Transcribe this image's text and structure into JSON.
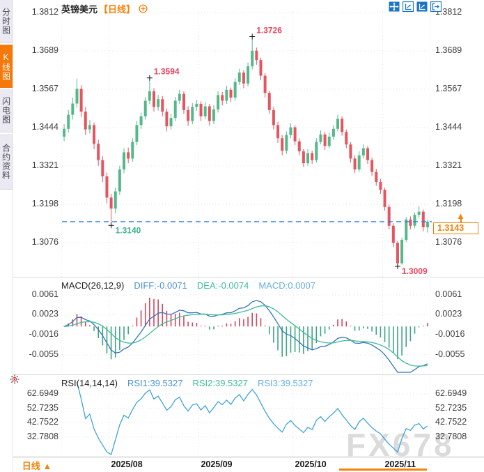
{
  "watermark": {
    "text": "FX678"
  },
  "sidebar": {
    "items": [
      {
        "label": "分时图",
        "active": false
      },
      {
        "label": "K线图",
        "active": true
      },
      {
        "label": "闪电图",
        "active": false
      },
      {
        "label": "合约资料",
        "active": false
      }
    ]
  },
  "header": {
    "symbol": "英镑美元",
    "period_tag": "【日线】"
  },
  "toolbar": {
    "icons": [
      {
        "name": "pan-tool"
      },
      {
        "name": "axis-zoom"
      },
      {
        "name": "axis-scale"
      },
      {
        "name": "exit-restore"
      }
    ]
  },
  "current_price": {
    "display": "1.3143",
    "value": 1.3143
  },
  "footer": {
    "period_label": "日线",
    "arrow": "▲"
  },
  "colors": {
    "accent_orange": "#f5820a",
    "candle_up": "#54b98a",
    "candle_down": "#e45560",
    "price_line_blue": "#1f83e8",
    "diff_blue": "#3273be",
    "dea_teal": "#3cbb95",
    "macd_hist_pos": "#d4455b",
    "macd_hist_neg": "#3da57f",
    "rsi_blue": "#3fa3d8",
    "grid": "#e3e3e3",
    "marker": "#111111"
  },
  "chart_data": {
    "type": "candlestick",
    "symbol": "英镑美元 (GBP/USD)",
    "interval": "日线",
    "price_ticks": [
      "1.3812",
      "1.3689",
      "1.3567",
      "1.3444",
      "1.3321",
      "1.3198",
      "1.3076"
    ],
    "candles": [
      [
        1.3415,
        1.3455,
        1.34,
        1.344
      ],
      [
        1.344,
        1.35,
        1.3428,
        1.3485
      ],
      [
        1.3485,
        1.354,
        1.347,
        1.3521
      ],
      [
        1.3521,
        1.36,
        1.3508,
        1.3568
      ],
      [
        1.3568,
        1.358,
        1.3478,
        1.3495
      ],
      [
        1.3495,
        1.351,
        1.342,
        1.3438
      ],
      [
        1.3438,
        1.3468,
        1.3425,
        1.3452
      ],
      [
        1.3452,
        1.346,
        1.3375,
        1.3392
      ],
      [
        1.3392,
        1.3405,
        1.3322,
        1.334
      ],
      [
        1.334,
        1.3352,
        1.327,
        1.3288
      ],
      [
        1.3288,
        1.33,
        1.3202,
        1.322
      ],
      [
        1.322,
        1.3232,
        1.314,
        1.3185
      ],
      [
        1.3185,
        1.3252,
        1.317,
        1.324
      ],
      [
        1.324,
        1.3322,
        1.3228,
        1.331
      ],
      [
        1.331,
        1.3378,
        1.3298,
        1.3365
      ],
      [
        1.3365,
        1.338,
        1.333,
        1.3345
      ],
      [
        1.3345,
        1.341,
        1.3335,
        1.3398
      ],
      [
        1.3398,
        1.3465,
        1.3388,
        1.3452
      ],
      [
        1.3452,
        1.3492,
        1.344,
        1.348
      ],
      [
        1.348,
        1.3542,
        1.347,
        1.353
      ],
      [
        1.353,
        1.3594,
        1.3518,
        1.356
      ],
      [
        1.356,
        1.357,
        1.3495,
        1.351
      ],
      [
        1.351,
        1.3548,
        1.3498,
        1.3535
      ],
      [
        1.3535,
        1.3545,
        1.348,
        1.3495
      ],
      [
        1.3495,
        1.3505,
        1.3432,
        1.3448
      ],
      [
        1.3448,
        1.3488,
        1.3438,
        1.3475
      ],
      [
        1.3475,
        1.3542,
        1.3465,
        1.353
      ],
      [
        1.353,
        1.3565,
        1.352,
        1.3552
      ],
      [
        1.3552,
        1.356,
        1.3488,
        1.35
      ],
      [
        1.35,
        1.3512,
        1.345,
        1.3465
      ],
      [
        1.3465,
        1.3522,
        1.3455,
        1.351
      ],
      [
        1.351,
        1.3532,
        1.3498,
        1.352
      ],
      [
        1.352,
        1.3528,
        1.3465,
        1.348
      ],
      [
        1.348,
        1.3525,
        1.347,
        1.3512
      ],
      [
        1.3512,
        1.352,
        1.345,
        1.3465
      ],
      [
        1.3465,
        1.3515,
        1.3455,
        1.3502
      ],
      [
        1.3502,
        1.356,
        1.3492,
        1.3548
      ],
      [
        1.3548,
        1.3558,
        1.3515,
        1.353
      ],
      [
        1.353,
        1.3578,
        1.352,
        1.3565
      ],
      [
        1.3565,
        1.3572,
        1.3525,
        1.354
      ],
      [
        1.354,
        1.3602,
        1.353,
        1.359
      ],
      [
        1.359,
        1.3632,
        1.358,
        1.362
      ],
      [
        1.362,
        1.3628,
        1.357,
        1.3585
      ],
      [
        1.3585,
        1.3652,
        1.3575,
        1.364
      ],
      [
        1.364,
        1.3726,
        1.363,
        1.369
      ],
      [
        1.369,
        1.37,
        1.3645,
        1.366
      ],
      [
        1.366,
        1.3668,
        1.3595,
        1.361
      ],
      [
        1.361,
        1.3618,
        1.354,
        1.3555
      ],
      [
        1.3555,
        1.3562,
        1.3488,
        1.35
      ],
      [
        1.35,
        1.351,
        1.3438,
        1.3452
      ],
      [
        1.3452,
        1.3462,
        1.3395,
        1.341
      ],
      [
        1.341,
        1.342,
        1.3355,
        1.337
      ],
      [
        1.337,
        1.3432,
        1.336,
        1.342
      ],
      [
        1.342,
        1.3458,
        1.341,
        1.3445
      ],
      [
        1.3445,
        1.3452,
        1.3388,
        1.34
      ],
      [
        1.34,
        1.341,
        1.3355,
        1.3368
      ],
      [
        1.3368,
        1.3375,
        1.3318,
        1.333
      ],
      [
        1.333,
        1.3375,
        1.3322,
        1.3362
      ],
      [
        1.3362,
        1.337,
        1.3328,
        1.334
      ],
      [
        1.334,
        1.341,
        1.3332,
        1.3398
      ],
      [
        1.3398,
        1.3435,
        1.339,
        1.3422
      ],
      [
        1.3422,
        1.343,
        1.3372,
        1.3385
      ],
      [
        1.3385,
        1.3428,
        1.3378,
        1.3415
      ],
      [
        1.3415,
        1.3452,
        1.3405,
        1.344
      ],
      [
        1.344,
        1.3485,
        1.3432,
        1.3472
      ],
      [
        1.3472,
        1.348,
        1.3418,
        1.343
      ],
      [
        1.343,
        1.3438,
        1.3378,
        1.339
      ],
      [
        1.339,
        1.3398,
        1.3332,
        1.3345
      ],
      [
        1.3345,
        1.3355,
        1.3298,
        1.331
      ],
      [
        1.331,
        1.3368,
        1.3302,
        1.3355
      ],
      [
        1.3355,
        1.339,
        1.3345,
        1.3378
      ],
      [
        1.3378,
        1.3385,
        1.3328,
        1.334
      ],
      [
        1.334,
        1.3348,
        1.329,
        1.3302
      ],
      [
        1.3302,
        1.3312,
        1.3258,
        1.327
      ],
      [
        1.327,
        1.328,
        1.3232,
        1.3245
      ],
      [
        1.3245,
        1.3252,
        1.3178,
        1.319
      ],
      [
        1.319,
        1.3198,
        1.3118,
        1.313
      ],
      [
        1.313,
        1.3138,
        1.3062,
        1.3075
      ],
      [
        1.3075,
        1.3082,
        1.3009,
        1.301
      ],
      [
        1.301,
        1.3092,
        1.3005,
        1.3085
      ],
      [
        1.3085,
        1.3158,
        1.3078,
        1.315
      ],
      [
        1.315,
        1.316,
        1.3118,
        1.313
      ],
      [
        1.313,
        1.3172,
        1.3122,
        1.3165
      ],
      [
        1.3165,
        1.3192,
        1.3155,
        1.3175
      ],
      [
        1.3175,
        1.3182,
        1.3112,
        1.3125
      ],
      [
        1.3125,
        1.315,
        1.3108,
        1.3143
      ]
    ],
    "x_axis": {
      "month_labels": [
        {
          "label": "2025/08",
          "index": 11
        },
        {
          "label": "2025/09",
          "index": 32
        },
        {
          "label": "2025/10",
          "index": 54
        },
        {
          "label": "2025/11",
          "index": 75
        }
      ]
    },
    "annotations": [
      {
        "text": "1.3594",
        "value": 1.3594,
        "index": 20,
        "side": "high",
        "color": "#e8455f"
      },
      {
        "text": "1.3726",
        "value": 1.3726,
        "index": 44,
        "side": "high",
        "color": "#e8455f"
      },
      {
        "text": "1.3140",
        "value": 1.314,
        "index": 11,
        "side": "low",
        "color": "#3cb487"
      },
      {
        "text": "1.3009",
        "value": 1.3009,
        "index": 78,
        "side": "low",
        "color": "#e8455f"
      }
    ],
    "macd": {
      "title": "MACD(26,12,9)",
      "diff_label": "DIFF:-0.0071",
      "dea_label": "DEA:-0.0074",
      "macd_label": "MACD:0.0007",
      "diff": -0.0071,
      "dea": -0.0074,
      "macd": 0.0007,
      "params": [
        26,
        12,
        9
      ],
      "ticks": [
        "0.0061",
        "0.0023",
        "-0.0016",
        "-0.0055"
      ]
    },
    "rsi": {
      "title": "RSI(14,14,14)",
      "rsi1_label": "RSI1:39.5327",
      "rsi2_label": "RSI2:39.5327",
      "rsi3_label": "RSI3:39.5327",
      "rsi1": 39.5327,
      "rsi2": 39.5327,
      "rsi3": 39.5327,
      "params": [
        14,
        14,
        14
      ],
      "ticks": [
        "62.6949",
        "52.7235",
        "42.7522",
        "32.7808"
      ]
    }
  }
}
